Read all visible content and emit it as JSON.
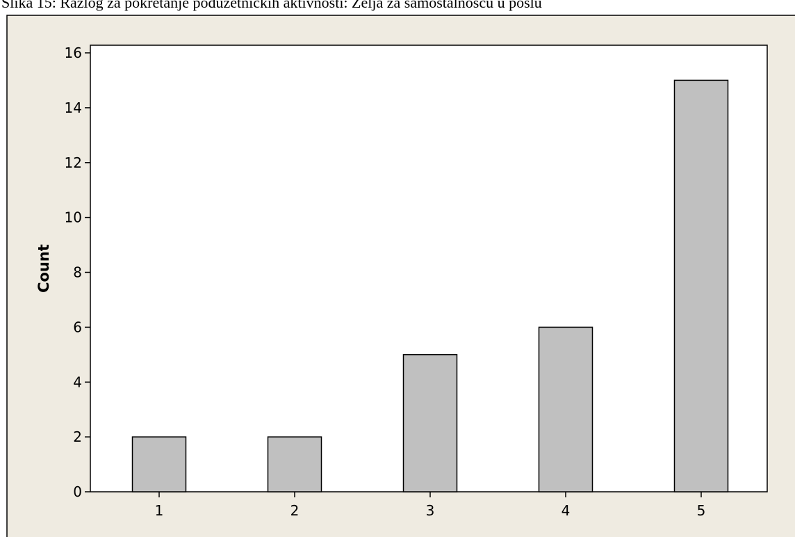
{
  "caption": "Slika 15: Razlog za pokretanje poduzetničkih aktivnosti: Želja za samostalnošću u poslu",
  "colors": {
    "frame_background": "#efebe1",
    "plot_background": "#ffffff",
    "bar_fill": "#c0c0c0",
    "bar_stroke": "#000000"
  },
  "chart_data": {
    "type": "bar",
    "categories": [
      "1",
      "2",
      "3",
      "4",
      "5"
    ],
    "values": [
      2,
      2,
      5,
      6,
      15
    ],
    "title": "",
    "xlabel": "",
    "ylabel": "Count",
    "ylim": [
      0,
      16
    ],
    "yticks": [
      "0",
      "2",
      "4",
      "6",
      "8",
      "10",
      "12",
      "14",
      "16"
    ],
    "grid": false,
    "legend": "none"
  }
}
